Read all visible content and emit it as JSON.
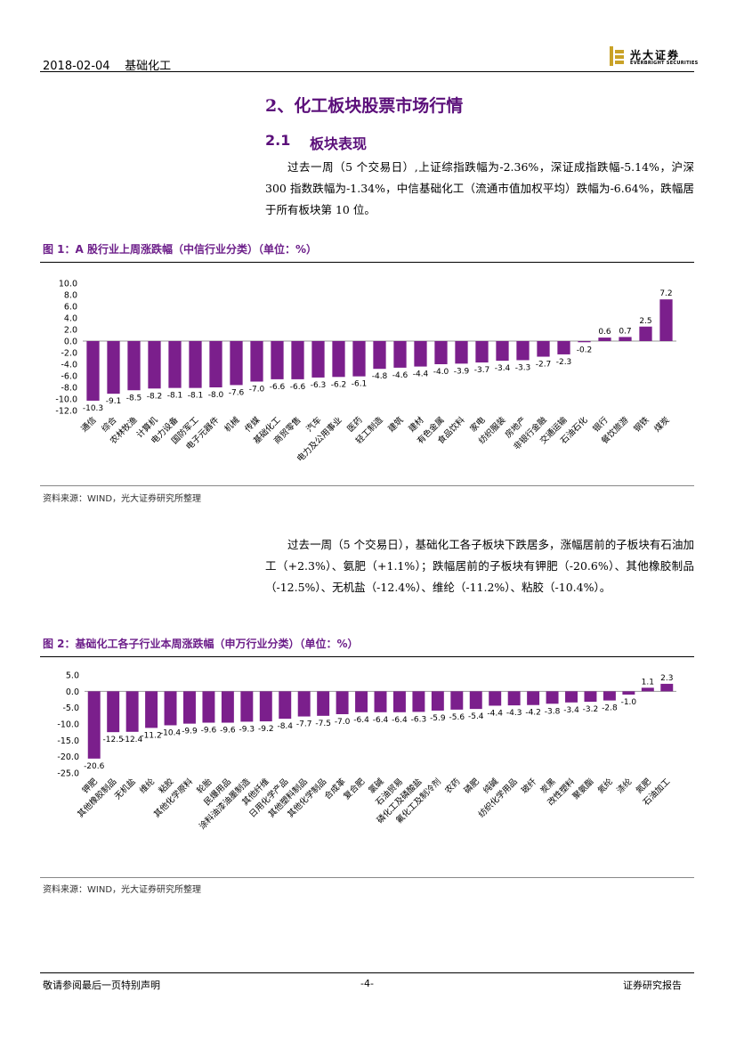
{
  "header": {
    "date": "2018-02-04",
    "section": "基础化工",
    "logo_cn": "光大证券",
    "logo_en": "EVERBRIGHT SECURITIES"
  },
  "section_title": "2、化工板块股票市场行情",
  "subsection": {
    "number": "2.1",
    "title": "板块表现"
  },
  "para1": "过去一周（5 个交易日）,上证综指跌幅为-2.36%，深证成指跌幅-5.14%，沪深 300 指数跌幅为-1.34%，中信基础化工（流通市值加权平均）跌幅为-6.64%，跌幅居于所有板块第 10 位。",
  "para2": "过去一周（5 个交易日），基础化工各子板块下跌居多，涨幅居前的子板块有石油加工（+2.3%）、氨肥（+1.1%）；跌幅居前的子板块有钾肥（-20.6%）、其他橡胶制品（-12.5%）、无机盐（-12.4%）、维纶（-11.2%）、粘胶（-10.4%）。",
  "figure1": {
    "title": "图 1：A 股行业上周涨跌幅（中信行业分类）（单位：%）",
    "source": "资料来源：WIND，光大证券研究所整理"
  },
  "figure2": {
    "title": "图 2：基础化工各子行业本周涨跌幅（申万行业分类）（单位：%）",
    "source": "资料来源：WIND，光大证券研究所整理"
  },
  "chart_data": [
    {
      "type": "bar",
      "title": "A 股行业上周涨跌幅（中信行业分类）（单位：%）",
      "color": "#7b1f8c",
      "ylim": [
        -12.0,
        10.0
      ],
      "yticks": [
        "10.0",
        "8.0",
        "6.0",
        "4.0",
        "2.0",
        "0.0",
        "-2.0",
        "-4.0",
        "-6.0",
        "-8.0",
        "-10.0",
        "-12.0"
      ],
      "categories": [
        "通信",
        "综合",
        "农林牧渔",
        "计算机",
        "电力设备",
        "国防军工",
        "电子元器件",
        "机械",
        "传媒",
        "基础化工",
        "商贸零售",
        "汽车",
        "电力及公用事业",
        "医药",
        "轻工制造",
        "建筑",
        "建材",
        "有色金属",
        "食品饮料",
        "家电",
        "纺织服装",
        "房地产",
        "非银行金融",
        "交通运输",
        "石油石化",
        "银行",
        "餐饮旅游",
        "钢铁",
        "煤炭"
      ],
      "values": [
        -10.3,
        -9.1,
        -8.5,
        -8.2,
        -8.1,
        -8.1,
        -8.0,
        -7.6,
        -7.0,
        -6.6,
        -6.6,
        -6.3,
        -6.2,
        -6.1,
        -4.8,
        -4.6,
        -4.4,
        -4.0,
        -3.9,
        -3.7,
        -3.4,
        -3.3,
        -2.7,
        -2.3,
        -0.2,
        0.6,
        0.7,
        2.5,
        7.2
      ],
      "labels": [
        "-10.3",
        "-9.1",
        "-8.5",
        "-8.2",
        "-8.1",
        "-8.1",
        "-8.0",
        "-7.6",
        "-7.0",
        "-6.6",
        "-6.6",
        "-6.3",
        "-6.2",
        "-6.1",
        "-4.8",
        "-4.6",
        "-4.4",
        "-4.0",
        "-3.9",
        "-3.7",
        "-3.4",
        "-3.3",
        "-2.7",
        "-2.3",
        "-0.2",
        "0.6",
        "0.7",
        "2.5",
        "7.2"
      ]
    },
    {
      "type": "bar",
      "title": "基础化工各子行业本周涨跌幅（申万行业分类）（单位：%）",
      "color": "#7b1f8c",
      "ylim": [
        -25.0,
        5.0
      ],
      "yticks": [
        "5.0",
        "0.0",
        "-5.0",
        "-10.0",
        "-15.0",
        "-20.0",
        "-25.0"
      ],
      "categories": [
        "钾肥",
        "其他橡胶制品",
        "无机盐",
        "维纶",
        "粘胶",
        "其他化学原料",
        "轮胎",
        "民爆用品",
        "涂料油漆油墨制造",
        "其他纤维",
        "日用化学产品",
        "其他塑料制品",
        "其他化学制品",
        "合成革",
        "复合肥",
        "氯碱",
        "石油贸易",
        "磷化工及磷酸盐",
        "氟化工及制冷剂",
        "农药",
        "磷肥",
        "纯碱",
        "纺织化学用品",
        "玻纤",
        "炭黑",
        "改性塑料",
        "聚氨酯",
        "氮纶",
        "涤纶",
        "氮肥",
        "石油加工"
      ],
      "values": [
        -20.6,
        -12.5,
        -12.4,
        -11.2,
        -10.4,
        -9.9,
        -9.6,
        -9.6,
        -9.3,
        -9.2,
        -8.4,
        -7.7,
        -7.5,
        -7.0,
        -6.4,
        -6.4,
        -6.4,
        -6.3,
        -5.9,
        -5.6,
        -5.4,
        -4.4,
        -4.3,
        -4.2,
        -3.8,
        -3.4,
        -3.2,
        -2.8,
        -1.0,
        1.1,
        2.3
      ],
      "labels": [
        "-20.6",
        "-12.5",
        "-12.4",
        "-11.2",
        "-10.4",
        "-9.9",
        "-9.6",
        "-9.6",
        "-9.3",
        "-9.2",
        "-8.4",
        "-7.7",
        "-7.5",
        "-7.0",
        "-6.4",
        "-6.4",
        "-6.4",
        "-6.3",
        "-5.9",
        "-5.6",
        "-5.4",
        "-4.4",
        "-4.3",
        "-4.2",
        "-3.8",
        "-3.4",
        "-3.2",
        "-2.8",
        "-1.0",
        "1.1",
        "2.3"
      ]
    }
  ],
  "footer": {
    "disclaimer": "敬请参阅最后一页特别声明",
    "page": "-4-",
    "report_type": "证券研究报告"
  }
}
